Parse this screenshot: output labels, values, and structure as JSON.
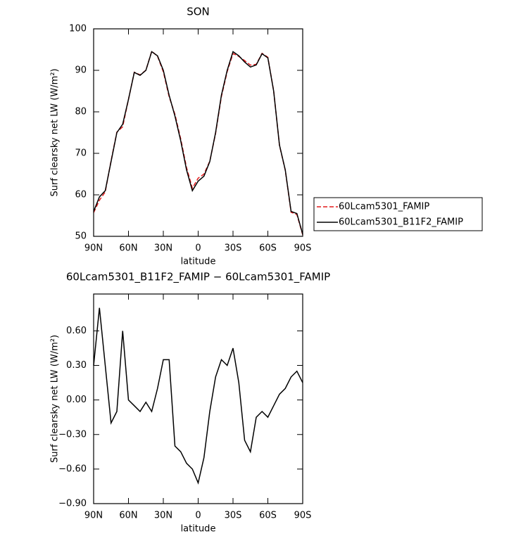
{
  "chart_data": [
    {
      "type": "line",
      "title": "SON",
      "xlabel": "latitude",
      "ylabel": "Surf clearsky net LW (W/m²)",
      "x": [
        90,
        85,
        80,
        75,
        70,
        65,
        60,
        55,
        50,
        45,
        40,
        35,
        30,
        25,
        20,
        15,
        10,
        5,
        0,
        -5,
        -10,
        -15,
        -20,
        -25,
        -30,
        -35,
        -40,
        -45,
        -50,
        -55,
        -60,
        -65,
        -70,
        -75,
        -80,
        -85,
        -90
      ],
      "series": [
        {
          "name": "60Lcam5301_FAMIP",
          "color": "#e41a1c",
          "style": "dashed",
          "values": [
            55.7,
            58.7,
            60.7,
            68.2,
            75.1,
            76.4,
            83,
            89.55,
            88.9,
            90.02,
            94.6,
            93.4,
            89.65,
            83.65,
            79.4,
            73.45,
            66.55,
            61.6,
            64.02,
            65,
            68.1,
            74.8,
            83.65,
            89.7,
            94.05,
            93.35,
            92.35,
            91.25,
            91.45,
            94.1,
            93.15,
            85.05,
            71.95,
            65.9,
            55.8,
            55.25,
            50.35
          ]
        },
        {
          "name": "60Lcam5301_B11F2_FAMIP",
          "color": "#000000",
          "style": "solid",
          "values": [
            56,
            59.5,
            61,
            68,
            75,
            77,
            83,
            89.5,
            88.8,
            90,
            94.5,
            93.5,
            90,
            84,
            79,
            73,
            66,
            61,
            63.3,
            64.5,
            68,
            75,
            84,
            90,
            94.5,
            93.5,
            92,
            90.8,
            91.3,
            94,
            93,
            85,
            72,
            66,
            56,
            55.5,
            50.5
          ]
        }
      ],
      "xlim": [
        90,
        -90
      ],
      "xticks": [
        {
          "value": 90,
          "label": "90N"
        },
        {
          "value": 60,
          "label": "60N"
        },
        {
          "value": 30,
          "label": "30N"
        },
        0,
        {
          "value": -30,
          "label": "30S"
        },
        {
          "value": -60,
          "label": "60S"
        },
        {
          "value": -90,
          "label": "90S"
        }
      ],
      "ylim": [
        50,
        100
      ],
      "yticks": [
        50,
        60,
        70,
        80,
        90,
        100
      ],
      "legend": "outside right"
    },
    {
      "type": "line",
      "title": "60Lcam5301_B11F2_FAMIP − 60Lcam5301_FAMIP",
      "xlabel": "latitude",
      "ylabel": "Surf clearsky net LW (W/m²)",
      "x": [
        90,
        85,
        80,
        75,
        70,
        65,
        60,
        55,
        50,
        45,
        40,
        35,
        30,
        25,
        20,
        15,
        10,
        5,
        0,
        -5,
        -10,
        -15,
        -20,
        -25,
        -30,
        -35,
        -40,
        -45,
        -50,
        -55,
        -60,
        -65,
        -70,
        -75,
        -80,
        -85,
        -90
      ],
      "series": [
        {
          "color": "#000000",
          "style": "solid",
          "values": [
            0.3,
            0.8,
            0.3,
            -0.2,
            -0.1,
            0.6,
            0,
            -0.05,
            -0.1,
            -0.02,
            -0.1,
            0.1,
            0.35,
            0.35,
            -0.4,
            -0.45,
            -0.55,
            -0.6,
            -0.72,
            -0.5,
            -0.1,
            0.2,
            0.35,
            0.3,
            0.45,
            0.15,
            -0.35,
            -0.45,
            -0.15,
            -0.1,
            -0.15,
            -0.05,
            0.05,
            0.1,
            0.2,
            0.25,
            0.15
          ]
        }
      ],
      "xlim": [
        90,
        -90
      ],
      "xticks": [
        {
          "value": 90,
          "label": "90N"
        },
        {
          "value": 60,
          "label": "60N"
        },
        {
          "value": 30,
          "label": "30N"
        },
        0,
        {
          "value": -30,
          "label": "30S"
        },
        {
          "value": -60,
          "label": "60S"
        },
        {
          "value": -90,
          "label": "90S"
        }
      ],
      "ylim": [
        -0.9,
        0.92
      ],
      "yticks": [
        {
          "value": -0.9,
          "label": "−0.90"
        },
        {
          "value": -0.6,
          "label": "−0.60"
        },
        {
          "value": -0.3,
          "label": "−0.30"
        },
        {
          "value": 0,
          "label": "0.00"
        },
        {
          "value": 0.3,
          "label": "0.30"
        },
        {
          "value": 0.6,
          "label": "0.60"
        }
      ]
    }
  ]
}
